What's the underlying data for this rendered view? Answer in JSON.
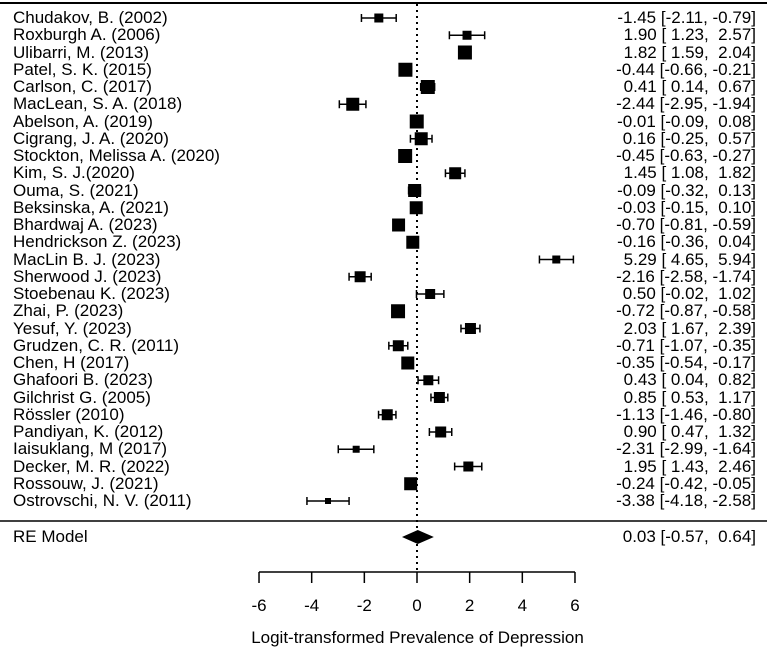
{
  "chart_data": {
    "type": "forest",
    "title": "",
    "xlabel": "Logit-transformed Prevalence of Depression",
    "ylabel": "",
    "xlim": [
      -6,
      6
    ],
    "xticks": [
      -6,
      -4,
      -2,
      0,
      2,
      4,
      6
    ],
    "reference_line": 0,
    "studies": [
      {
        "label": "Chudakov, B. (2002)",
        "est": -1.45,
        "lo": -2.11,
        "hi": -0.79,
        "text": "-1.45 [-2.11, -0.79]"
      },
      {
        "label": "Roxburgh  A. (2006)",
        "est": 1.9,
        "lo": 1.23,
        "hi": 2.57,
        "text": "1.90 [ 1.23,  2.57]"
      },
      {
        "label": "Ulibarri, M. (2013)",
        "est": 1.82,
        "lo": 1.59,
        "hi": 2.04,
        "text": "1.82 [ 1.59,  2.04]"
      },
      {
        "label": "Patel, S. K. (2015)",
        "est": -0.44,
        "lo": -0.66,
        "hi": -0.21,
        "text": "-0.44 [-0.66, -0.21]"
      },
      {
        "label": "Carlson, C. (2017)",
        "est": 0.41,
        "lo": 0.14,
        "hi": 0.67,
        "text": "0.41 [ 0.14,  0.67]"
      },
      {
        "label": "MacLean, S. A. (2018)",
        "est": -2.44,
        "lo": -2.95,
        "hi": -1.94,
        "text": "-2.44 [-2.95, -1.94]"
      },
      {
        "label": "Abelson, A. (2019)",
        "est": -0.01,
        "lo": -0.09,
        "hi": 0.08,
        "text": "-0.01 [-0.09,  0.08]"
      },
      {
        "label": "Cigrang, J. A. (2020)",
        "est": 0.16,
        "lo": -0.25,
        "hi": 0.57,
        "text": "0.16 [-0.25,  0.57]"
      },
      {
        "label": "Stockton, Melissa A. (2020)",
        "est": -0.45,
        "lo": -0.63,
        "hi": -0.27,
        "text": "-0.45 [-0.63, -0.27]"
      },
      {
        "label": "Kim, S. J.(2020)",
        "est": 1.45,
        "lo": 1.08,
        "hi": 1.82,
        "text": "1.45 [ 1.08,  1.82]"
      },
      {
        "label": "Ouma, S. (2021)",
        "est": -0.09,
        "lo": -0.32,
        "hi": 0.13,
        "text": "-0.09 [-0.32,  0.13]"
      },
      {
        "label": "Beksinska, A. (2021)",
        "est": -0.03,
        "lo": -0.15,
        "hi": 0.1,
        "text": "-0.03 [-0.15,  0.10]"
      },
      {
        "label": "Bhardwaj A. (2023)",
        "est": -0.7,
        "lo": -0.81,
        "hi": -0.59,
        "text": "-0.70 [-0.81, -0.59]"
      },
      {
        "label": "Hendrickson Z. (2023)",
        "est": -0.16,
        "lo": -0.36,
        "hi": 0.04,
        "text": "-0.16 [-0.36,  0.04]"
      },
      {
        "label": "MacLin B. J. (2023)",
        "est": 5.29,
        "lo": 4.65,
        "hi": 5.94,
        "text": "5.29 [ 4.65,  5.94]"
      },
      {
        "label": "Sherwood J. (2023)",
        "est": -2.16,
        "lo": -2.58,
        "hi": -1.74,
        "text": "-2.16 [-2.58, -1.74]"
      },
      {
        "label": "Stoebenau K. (2023)",
        "est": 0.5,
        "lo": -0.02,
        "hi": 1.02,
        "text": "0.50 [-0.02,  1.02]"
      },
      {
        "label": "Zhai, P. (2023)",
        "est": -0.72,
        "lo": -0.87,
        "hi": -0.58,
        "text": "-0.72 [-0.87, -0.58]"
      },
      {
        "label": "Yesuf, Y. (2023)",
        "est": 2.03,
        "lo": 1.67,
        "hi": 2.39,
        "text": "2.03 [ 1.67,  2.39]"
      },
      {
        "label": "Grudzen, C. R. (2011)",
        "est": -0.71,
        "lo": -1.07,
        "hi": -0.35,
        "text": "-0.71 [-1.07, -0.35]"
      },
      {
        "label": "Chen, H (2017)",
        "est": -0.35,
        "lo": -0.54,
        "hi": -0.17,
        "text": "-0.35 [-0.54, -0.17]"
      },
      {
        "label": "Ghafoori B. (2023)",
        "est": 0.43,
        "lo": 0.04,
        "hi": 0.82,
        "text": "0.43 [ 0.04,  0.82]"
      },
      {
        "label": "Gilchrist G. (2005)",
        "est": 0.85,
        "lo": 0.53,
        "hi": 1.17,
        "text": "0.85 [ 0.53,  1.17]"
      },
      {
        "label": "Rössler (2010)",
        "est": -1.13,
        "lo": -1.46,
        "hi": -0.8,
        "text": "-1.13 [-1.46, -0.80]"
      },
      {
        "label": "Pandiyan, K. (2012)",
        "est": 0.9,
        "lo": 0.47,
        "hi": 1.32,
        "text": "0.90 [ 0.47,  1.32]"
      },
      {
        "label": "Iaisuklang, M (2017)",
        "est": -2.31,
        "lo": -2.99,
        "hi": -1.64,
        "text": "-2.31 [-2.99, -1.64]"
      },
      {
        "label": "Decker, M. R. (2022)",
        "est": 1.95,
        "lo": 1.43,
        "hi": 2.46,
        "text": "1.95 [ 1.43,  2.46]"
      },
      {
        "label": "Rossouw, J. (2021)",
        "est": -0.24,
        "lo": -0.42,
        "hi": -0.05,
        "text": "-0.24 [-0.42, -0.05]"
      },
      {
        "label": "Ostrovschi, N. V. (2011)",
        "est": -3.38,
        "lo": -4.18,
        "hi": -2.58,
        "text": "-3.38 [-4.18, -2.58]"
      }
    ],
    "summary": {
      "label": "RE Model",
      "est": 0.03,
      "lo": -0.57,
      "hi": 0.64,
      "text": "0.03 [-0.57,  0.64]"
    },
    "marker_sizes": [
      9,
      9,
      14,
      14,
      14,
      13,
      14,
      13,
      14,
      12,
      13,
      13,
      13,
      13,
      8,
      11,
      10,
      14,
      11,
      11,
      13,
      10,
      11,
      11,
      11,
      7,
      10,
      13,
      6
    ],
    "colors": {
      "marker": "#000000",
      "line": "#000000",
      "background": "#ffffff"
    }
  }
}
